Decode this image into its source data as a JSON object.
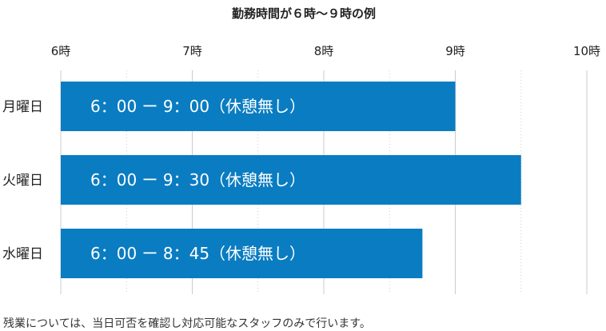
{
  "chart_data": {
    "type": "bar",
    "orientation": "horizontal",
    "title": "勤務時間が６時～９時の例",
    "x_ticks": [
      "6時",
      "7時",
      "8時",
      "9時",
      "10時"
    ],
    "xlim": [
      6,
      10
    ],
    "grid": true,
    "categories": [
      "月曜日",
      "火曜日",
      "水曜日"
    ],
    "series": [
      {
        "start": [
          6.0,
          6.0,
          6.0
        ],
        "end": [
          9.0,
          9.5,
          8.75
        ],
        "labels": [
          "6：00 ー 9：00（休憩無し）",
          "6：00 ー 9：30（休憩無し）",
          "6：00 ー 8：45（休憩無し）"
        ]
      }
    ],
    "colors": {
      "bar": "#0a7cc1",
      "bar_text": "#ffffff",
      "grid": "#cccccc",
      "text": "#222222"
    }
  },
  "footnote": "残業については、当日可否を確認し対応可能なスタッフのみで行います。"
}
